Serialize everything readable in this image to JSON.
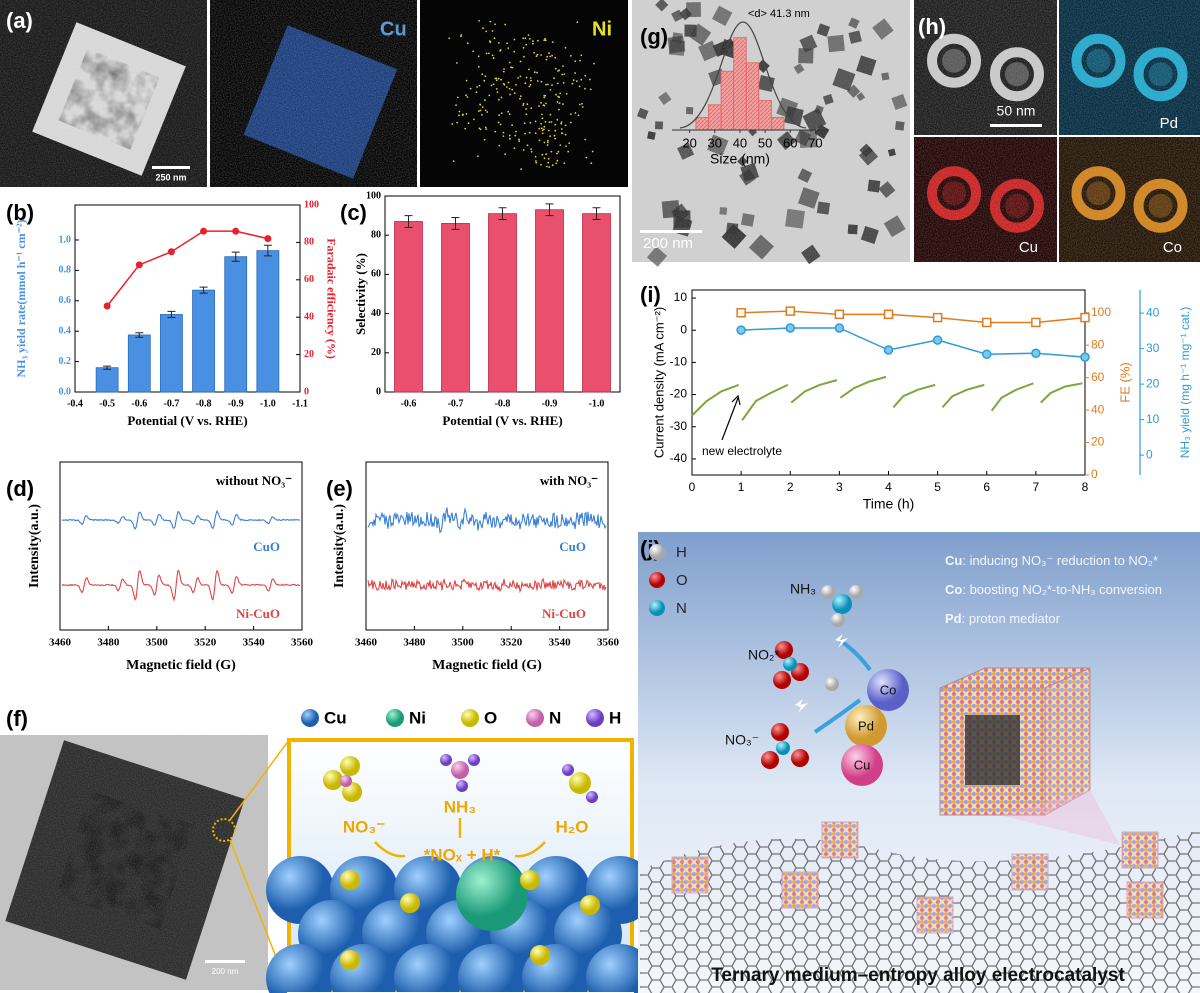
{
  "panels": {
    "a": {
      "label": "(a)",
      "maps": [
        "Cu",
        "Ni"
      ],
      "scale_bar": "250 nm"
    },
    "b": {
      "label": "(b)"
    },
    "c": {
      "label": "(c)"
    },
    "d": {
      "label": "(d)",
      "annotation": "without NO₃⁻",
      "traces": [
        "CuO",
        "Ni-CuO"
      ],
      "colors": [
        "#3a7fd5",
        "#e04545"
      ],
      "ylabel": "Intensity(a.u.)",
      "xlabel": "Magnetic field (G)",
      "xlim": [
        3460,
        3560
      ],
      "xticks": [
        3460,
        3480,
        3500,
        3520,
        3540,
        3560
      ]
    },
    "e": {
      "label": "(e)",
      "annotation": "with NO₃⁻",
      "traces": [
        "CuO",
        "Ni-CuO"
      ],
      "colors": [
        "#3a7fd5",
        "#e04545"
      ],
      "ylabel": "Intensity(a.u.)",
      "xlabel": "Magnetic field (G)",
      "xlim": [
        3460,
        3560
      ],
      "xticks": [
        3460,
        3480,
        3500,
        3520,
        3540,
        3560
      ]
    },
    "f": {
      "label": "(f)",
      "scale_bar": "200 nm",
      "legend": [
        "Cu",
        "Ni",
        "O",
        "N",
        "H"
      ],
      "species": [
        "NO₃⁻",
        "NH₃",
        "H₂O"
      ],
      "surface": "*NOₓ + H*"
    },
    "g": {
      "label": "(g)",
      "scale_bar": "200 nm"
    },
    "h": {
      "label": "(h)",
      "scale_bar": "50 nm",
      "maps": [
        "Pd",
        "Cu",
        "Co"
      ]
    },
    "i": {
      "label": "(i)",
      "annotation": "new electrolyte"
    },
    "j": {
      "label": "(j)",
      "legend": [
        "H",
        "O",
        "N"
      ],
      "notes": [
        {
          "element": "Cu",
          "text": ": inducing NO₃⁻ reduction to NO₂*"
        },
        {
          "element": "Co",
          "text": ": boosting NO₂*-to-NH₃ conversion"
        },
        {
          "element": "Pd",
          "text": ": proton mediator"
        }
      ],
      "molecules": [
        "NH₃",
        "NO₂*",
        "NO₃⁻"
      ],
      "metals": [
        "Co",
        "Pd",
        "Cu"
      ],
      "caption": "Ternary medium–entropy alloy electrocatalyst"
    }
  },
  "chart_data": [
    {
      "type": "bar",
      "x": [
        -0.5,
        -0.6,
        -0.7,
        -0.8,
        -0.9,
        -1
      ],
      "xlim": [
        -0.4,
        -1.1
      ],
      "xticks": [
        -0.4,
        -0.5,
        -0.6,
        -0.7,
        -0.8,
        -0.9,
        {
          "value": -1,
          "label": "-1.0"
        },
        -1.1
      ],
      "ylim": [
        0,
        1.23
      ],
      "yticks": [
        {
          "value": 0,
          "label": "0.0"
        },
        0.2,
        0.4,
        0.6,
        0.8,
        {
          "value": 1,
          "label": "1.0"
        }
      ],
      "y2lim": [
        0,
        100
      ],
      "y2ticks": [
        0,
        20,
        40,
        60,
        80,
        100
      ],
      "xlabel": "Potential (V vs. RHE)",
      "ylabel": "NH₃ yield rate(mmol h⁻¹ cm⁻²)",
      "y2label": "Faradaic efficiency (%)",
      "series": [
        {
          "type": "bar",
          "color": "#4a90e2",
          "values": [
            0.16,
            0.375,
            0.51,
            0.67,
            0.89,
            0.93
          ],
          "errors": [
            0.01,
            0.015,
            0.02,
            0.02,
            0.03,
            0.035
          ]
        },
        {
          "type": "line",
          "axis": "y2",
          "color": "#e8202a",
          "values": [
            46,
            68,
            75,
            86,
            86,
            82
          ]
        }
      ]
    },
    {
      "type": "bar",
      "categories": [
        "-0.6",
        "-0.7",
        "-0.8",
        "-0.9",
        "-1.0"
      ],
      "values": [
        87,
        86,
        91,
        93,
        91
      ],
      "errors": [
        3,
        3,
        3,
        3,
        3
      ],
      "color": "#e8506e",
      "ylim": [
        0,
        100
      ],
      "yticks": [
        0,
        20,
        40,
        60,
        80,
        100
      ],
      "xlabel": "Potential (V vs. RHE)",
      "ylabel": "Selectivity (%)"
    },
    {
      "type": "line",
      "xlim": [
        0,
        8
      ],
      "xticks": [
        0,
        1,
        2,
        3,
        4,
        5,
        6,
        7,
        8
      ],
      "ylim": [
        -45,
        12.5
      ],
      "yticks": [
        10,
        0,
        -10,
        -20,
        -30,
        -40
      ],
      "y2lim": [
        0,
        114
      ],
      "y2ticks": [
        0,
        20,
        40,
        60,
        80,
        100
      ],
      "y3lim": [
        -5.6,
        46.5
      ],
      "y3ticks": [
        0,
        10,
        20,
        30,
        40
      ],
      "xlabel": "Time (h)",
      "ylabel": "Current density (mA cm⁻²)",
      "y2label": "FE (%)",
      "y3label": "NH₃ yield (mg h⁻¹ mg⁻¹ cat.)",
      "x": [
        1,
        2,
        3,
        4,
        5,
        6,
        7,
        8
      ],
      "series": [
        {
          "color": "#7aa83a",
          "x": [
            0,
            0.3,
            0.6,
            0.95,
            null,
            1.02,
            1.3,
            1.6,
            1.95,
            null,
            2.02,
            2.3,
            2.6,
            2.95,
            null,
            3.02,
            3.3,
            3.6,
            3.95,
            null,
            4.1,
            4.3,
            4.6,
            4.95,
            null,
            5.1,
            5.3,
            5.6,
            5.95,
            null,
            6.1,
            6.3,
            6.6,
            6.95,
            null,
            7.1,
            7.3,
            7.6,
            7.95
          ],
          "values": [
            -26.5,
            -22,
            -19,
            -17,
            null,
            -28,
            -22,
            -19.5,
            -17,
            null,
            -22.5,
            -19,
            -17,
            -15.5,
            null,
            -21,
            -18,
            -16,
            -14.5,
            null,
            -24,
            -20.5,
            -18.5,
            -17,
            null,
            -24,
            -20.5,
            -18.5,
            -17,
            null,
            -25,
            -21,
            -18.5,
            -16.5,
            null,
            -22.5,
            -19.5,
            -17.5,
            -16.5
          ]
        },
        {
          "color": "#e07b20",
          "axis": "y2",
          "marker": "square",
          "values": [
            100,
            101,
            99,
            99,
            97,
            94,
            94,
            97
          ]
        },
        {
          "color": "#2e9bd6",
          "axis": "y3",
          "marker": "circle",
          "values": [
            35.2,
            35.8,
            35.8,
            29.6,
            32.4,
            28.4,
            28.7,
            27.6
          ]
        }
      ]
    },
    {
      "type": "histogram",
      "bins": [
        22.5,
        27.5,
        32.5,
        37.5,
        42.5,
        47.5,
        52.5,
        57.5
      ],
      "counts": [
        3,
        6,
        14,
        22,
        16,
        7,
        3
      ],
      "color": "#f2a0a0",
      "xlim": [
        13,
        75
      ],
      "xticks": [
        20,
        30,
        40,
        50,
        60,
        70
      ],
      "ylim": [
        0,
        25
      ],
      "xlabel": "Size (nm)",
      "annotation": "<d> 41.3 nm"
    }
  ]
}
